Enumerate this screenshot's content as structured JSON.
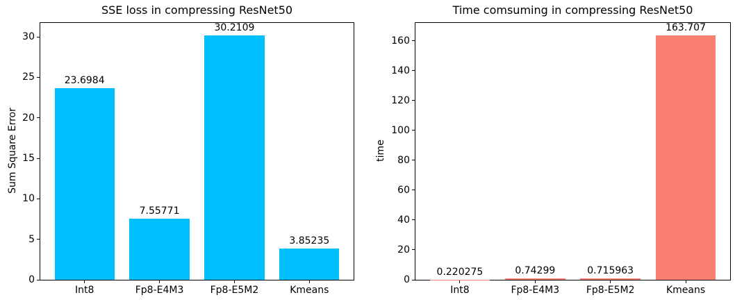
{
  "page": {
    "background_color": "#ffffff",
    "axis_color": "#000000",
    "text_color": "#000000"
  },
  "chart_data": [
    {
      "type": "bar",
      "title": "SSE loss in compressing ResNet50",
      "xlabel": "",
      "ylabel": "Sum Square Error",
      "categories": [
        "Int8",
        "Fp8-E4M3",
        "Fp8-E5M2",
        "Kmeans"
      ],
      "values": [
        23.6984,
        7.55771,
        30.2109,
        3.85235
      ],
      "bar_labels": [
        "23.6984",
        "7.55771",
        "30.2109",
        "3.85235"
      ],
      "bar_color": "#00BFFF",
      "yticks": [
        0,
        5,
        10,
        15,
        20,
        25,
        30
      ],
      "ylim": [
        0,
        31.7214
      ],
      "xlim": [
        -0.59,
        3.59
      ],
      "bar_width": 0.8,
      "grid": false,
      "legend_position": "none"
    },
    {
      "type": "bar",
      "title": "Time comsuming in compressing ResNet50",
      "xlabel": "",
      "ylabel": "time",
      "categories": [
        "Int8",
        "Fp8-E4M3",
        "Fp8-E5M2",
        "Kmeans"
      ],
      "values": [
        0.220275,
        0.74299,
        0.715963,
        163.707
      ],
      "bar_labels": [
        "0.220275",
        "0.74299",
        "0.715963",
        "163.707"
      ],
      "bar_color": "#FA8072",
      "yticks": [
        0,
        20,
        40,
        60,
        80,
        100,
        120,
        140,
        160
      ],
      "ylim": [
        0,
        171.892
      ],
      "xlim": [
        -0.59,
        3.59
      ],
      "bar_width": 0.8,
      "grid": false,
      "legend_position": "none"
    }
  ]
}
